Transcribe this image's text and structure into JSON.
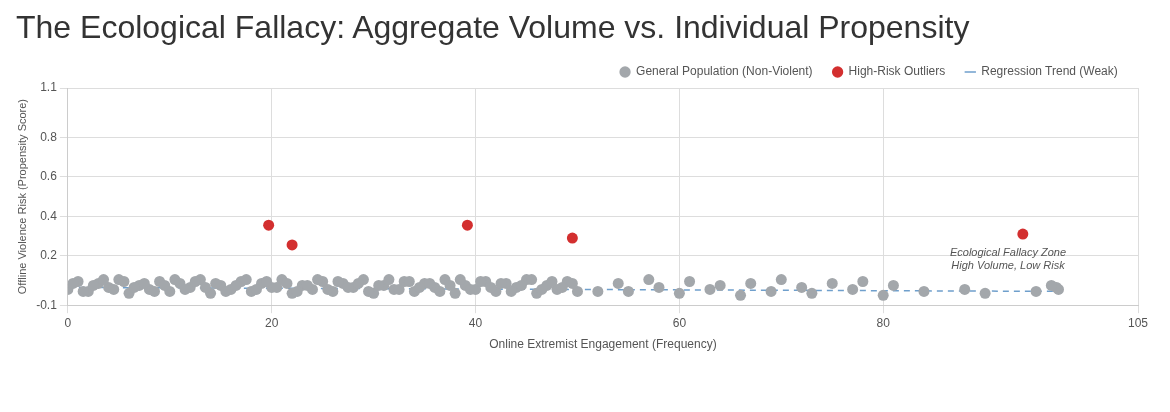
{
  "chart_data": {
    "type": "scatter",
    "title": "The Ecological Fallacy: Aggregate Volume vs. Individual Propensity",
    "xlabel": "Online Extremist Engagement (Frequency)",
    "ylabel": "Offline Violence Risk (Propensity Score)",
    "xlim": [
      0,
      105
    ],
    "xticks": [
      0,
      20,
      40,
      60,
      80,
      105
    ],
    "ylim": [
      -0.05,
      1.05
    ],
    "yticks": [
      {
        "value": -0.05,
        "label": "-0.1"
      },
      0.2,
      0.4,
      0.6,
      0.8,
      {
        "value": 1.05,
        "label": "1.1"
      }
    ],
    "grid": true,
    "legend": "top right",
    "series": [
      {
        "name": "General Population (Non-Violent)",
        "marker": "circle",
        "color": "#a3a7ab",
        "x": [
          0,
          1,
          2,
          3,
          4,
          5,
          6,
          7,
          8,
          9,
          10,
          11,
          12,
          13,
          14,
          15,
          16,
          17,
          18,
          19,
          20,
          21,
          22,
          23,
          24,
          25,
          26,
          27,
          28,
          29,
          30,
          31,
          32,
          33,
          34,
          35,
          36,
          37,
          38,
          39,
          40,
          41,
          42,
          43,
          44,
          45,
          46,
          47,
          48,
          49,
          50,
          0.5,
          1.5,
          2.5,
          3.5,
          4.5,
          5.5,
          6.5,
          7.5,
          8.5,
          9.5,
          10.5,
          11.5,
          12.5,
          13.5,
          14.5,
          15.5,
          16.5,
          17.5,
          18.5,
          19.5,
          20.5,
          21.5,
          22.5,
          23.5,
          24.5,
          25.5,
          26.5,
          27.5,
          28.5,
          29.5,
          30.5,
          31.5,
          32.5,
          33.5,
          34.5,
          35.5,
          36.5,
          37.5,
          38.5,
          39.5,
          40.5,
          41.5,
          42.5,
          43.5,
          44.5,
          45.5,
          46.5,
          47.5,
          48.5,
          49.5,
          52,
          54,
          55,
          57,
          58,
          60,
          61,
          63,
          64,
          66,
          67,
          69,
          70,
          72,
          73,
          75,
          77,
          78,
          80,
          81,
          84,
          88,
          90,
          95,
          97,
          97.2,
          96.5
        ],
        "values": [
          0.03,
          0.07,
          0.02,
          0.06,
          0.04,
          0.08,
          0.01,
          0.05,
          0.03,
          0.07,
          0.02,
          0.06,
          0.04,
          0.08,
          0.01,
          0.05,
          0.03,
          0.07,
          0.02,
          0.06,
          0.04,
          0.08,
          0.01,
          0.05,
          0.03,
          0.07,
          0.02,
          0.06,
          0.04,
          0.08,
          0.01,
          0.05,
          0.03,
          0.07,
          0.02,
          0.06,
          0.04,
          0.08,
          0.01,
          0.05,
          0.03,
          0.07,
          0.02,
          0.06,
          0.04,
          0.08,
          0.01,
          0.05,
          0.03,
          0.07,
          0.02,
          0.06,
          0.02,
          0.05,
          0.08,
          0.03,
          0.07,
          0.04,
          0.06,
          0.02,
          0.05,
          0.08,
          0.03,
          0.07,
          0.04,
          0.06,
          0.02,
          0.05,
          0.08,
          0.03,
          0.07,
          0.04,
          0.06,
          0.02,
          0.05,
          0.08,
          0.03,
          0.07,
          0.04,
          0.06,
          0.02,
          0.05,
          0.08,
          0.03,
          0.07,
          0.04,
          0.06,
          0.02,
          0.05,
          0.08,
          0.03,
          0.07,
          0.04,
          0.06,
          0.02,
          0.05,
          0.08,
          0.03,
          0.07,
          0.04,
          0.06,
          0.02,
          0.06,
          0.02,
          0.08,
          0.04,
          0.01,
          0.07,
          0.03,
          0.05,
          0.0,
          0.06,
          0.02,
          0.08,
          0.04,
          0.01,
          0.06,
          0.03,
          0.07,
          0.0,
          0.05,
          0.02,
          0.03,
          0.01,
          0.02,
          0.04,
          0.03,
          0.05
        ]
      },
      {
        "name": "High-Risk Outliers",
        "marker": "circle",
        "color": "#d32f2f",
        "x": [
          19.7,
          22,
          39.2,
          49.5,
          93.7
        ],
        "values": [
          0.355,
          0.255,
          0.355,
          0.29,
          0.31
        ]
      },
      {
        "name": "Regression Trend (Weak)",
        "type": "line",
        "marker": "none",
        "color": "#6f9fcc",
        "line_style": "dashed",
        "x": [
          0,
          97
        ],
        "values": [
          0.04,
          0.02
        ]
      }
    ],
    "annotations": [
      "Ecological Fallacy Zone\nHigh Volume, Low Risk"
    ]
  }
}
